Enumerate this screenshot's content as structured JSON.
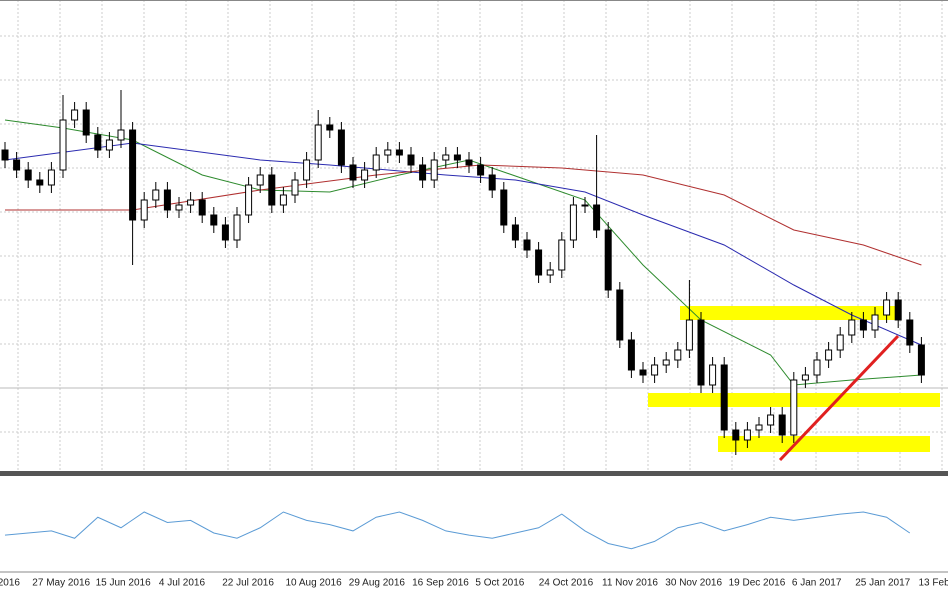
{
  "chart_data": [
    {
      "type": "candlestick",
      "x_labels": [
        "2016",
        "27 May 2016",
        "15 Jun 2016",
        "4 Jul 2016",
        "22 Jul 2016",
        "10 Aug 2016",
        "29 Aug 2016",
        "16 Sep 2016",
        "5 Oct 2016",
        "24 Oct 2016",
        "11 Nov 2016",
        "30 Nov 2016",
        "19 Dec 2016",
        "6 Jan 2017",
        "25 Jan 2017",
        "13 Feb"
      ],
      "open": [
        320,
        310,
        300,
        290,
        285,
        300,
        350,
        360,
        335,
        320,
        330,
        340,
        250,
        270,
        280,
        260,
        265,
        270,
        255,
        245,
        230,
        255,
        285,
        295,
        265,
        275,
        290,
        310,
        345,
        340,
        305,
        290,
        300,
        315,
        320,
        315,
        305,
        290,
        310,
        315,
        310,
        305,
        295,
        280,
        245,
        230,
        220,
        195,
        200,
        230,
        265,
        265,
        240,
        180,
        130,
        100,
        95,
        105,
        110,
        120,
        150,
        85,
        105,
        40,
        30,
        40,
        45,
        55,
        35,
        90,
        95,
        110,
        120,
        135,
        150,
        140,
        155,
        170,
        150,
        125
      ],
      "high": [
        328,
        318,
        308,
        298,
        308,
        375,
        368,
        368,
        343,
        338,
        380,
        348,
        278,
        288,
        288,
        273,
        278,
        278,
        263,
        253,
        263,
        293,
        303,
        303,
        283,
        298,
        318,
        360,
        353,
        348,
        313,
        308,
        323,
        328,
        328,
        323,
        313,
        318,
        323,
        323,
        318,
        313,
        303,
        288,
        253,
        238,
        228,
        208,
        238,
        273,
        273,
        335,
        248,
        188,
        138,
        108,
        113,
        118,
        128,
        190,
        158,
        113,
        113,
        48,
        48,
        53,
        63,
        63,
        98,
        103,
        118,
        128,
        143,
        158,
        158,
        163,
        178,
        178,
        158,
        133
      ],
      "low": [
        302,
        292,
        282,
        277,
        277,
        292,
        342,
        327,
        312,
        312,
        322,
        205,
        242,
        262,
        252,
        252,
        257,
        247,
        237,
        222,
        222,
        247,
        277,
        257,
        257,
        267,
        282,
        302,
        332,
        297,
        282,
        282,
        292,
        307,
        307,
        297,
        282,
        282,
        302,
        302,
        297,
        287,
        272,
        237,
        222,
        212,
        187,
        187,
        192,
        222,
        257,
        232,
        172,
        122,
        92,
        87,
        87,
        97,
        102,
        112,
        77,
        77,
        32,
        15,
        22,
        32,
        37,
        27,
        27,
        82,
        87,
        102,
        112,
        127,
        132,
        132,
        147,
        142,
        117,
        87
      ],
      "close": [
        310,
        300,
        290,
        285,
        300,
        350,
        360,
        335,
        320,
        330,
        340,
        250,
        270,
        280,
        260,
        265,
        270,
        255,
        245,
        230,
        255,
        285,
        295,
        265,
        275,
        290,
        310,
        345,
        340,
        305,
        290,
        300,
        315,
        320,
        315,
        305,
        290,
        310,
        315,
        310,
        305,
        295,
        280,
        245,
        230,
        220,
        195,
        200,
        230,
        265,
        265,
        240,
        180,
        130,
        100,
        95,
        105,
        110,
        120,
        150,
        85,
        105,
        40,
        30,
        40,
        45,
        55,
        35,
        90,
        95,
        110,
        120,
        135,
        150,
        140,
        155,
        170,
        150,
        125,
        95
      ],
      "ylim": [
        0,
        470
      ],
      "series": [
        {
          "color": "#2e8b2e",
          "x": [
            0,
            5,
            11,
            17,
            22,
            28,
            34,
            40,
            45,
            50,
            55,
            60,
            66,
            68,
            73,
            79
          ],
          "values": [
            350,
            342,
            330,
            295,
            280,
            278,
            295,
            310,
            290,
            270,
            205,
            150,
            115,
            85,
            90,
            95
          ]
        },
        {
          "color": "#2b2bb0",
          "x": [
            0,
            11,
            22,
            28,
            38,
            44,
            50,
            55,
            62,
            68,
            73,
            79
          ],
          "values": [
            310,
            327,
            310,
            305,
            295,
            290,
            278,
            255,
            225,
            185,
            155,
            125
          ]
        },
        {
          "color": "#b03030",
          "x": [
            0,
            11,
            22,
            32,
            41,
            48,
            55,
            62,
            68,
            74,
            79
          ],
          "values": [
            260,
            260,
            280,
            295,
            305,
            302,
            295,
            275,
            240,
            225,
            205
          ]
        }
      ]
    },
    {
      "type": "line",
      "color": "#5b9bd5",
      "ylim": [
        0,
        100
      ],
      "x": [
        0,
        2,
        4,
        6,
        8,
        10,
        12,
        14,
        16,
        18,
        20,
        22,
        24,
        26,
        28,
        30,
        32,
        34,
        36,
        38,
        40,
        42,
        44,
        46,
        48,
        50,
        52,
        54,
        56,
        58,
        60,
        62,
        64,
        66,
        68,
        70,
        72,
        74,
        76,
        78
      ],
      "values": [
        38,
        40,
        42,
        35,
        55,
        45,
        60,
        50,
        52,
        40,
        35,
        45,
        60,
        52,
        48,
        42,
        55,
        60,
        52,
        42,
        38,
        35,
        40,
        45,
        58,
        42,
        30,
        25,
        32,
        45,
        50,
        42,
        48,
        55,
        52,
        55,
        58,
        60,
        55,
        40
      ]
    }
  ]
}
